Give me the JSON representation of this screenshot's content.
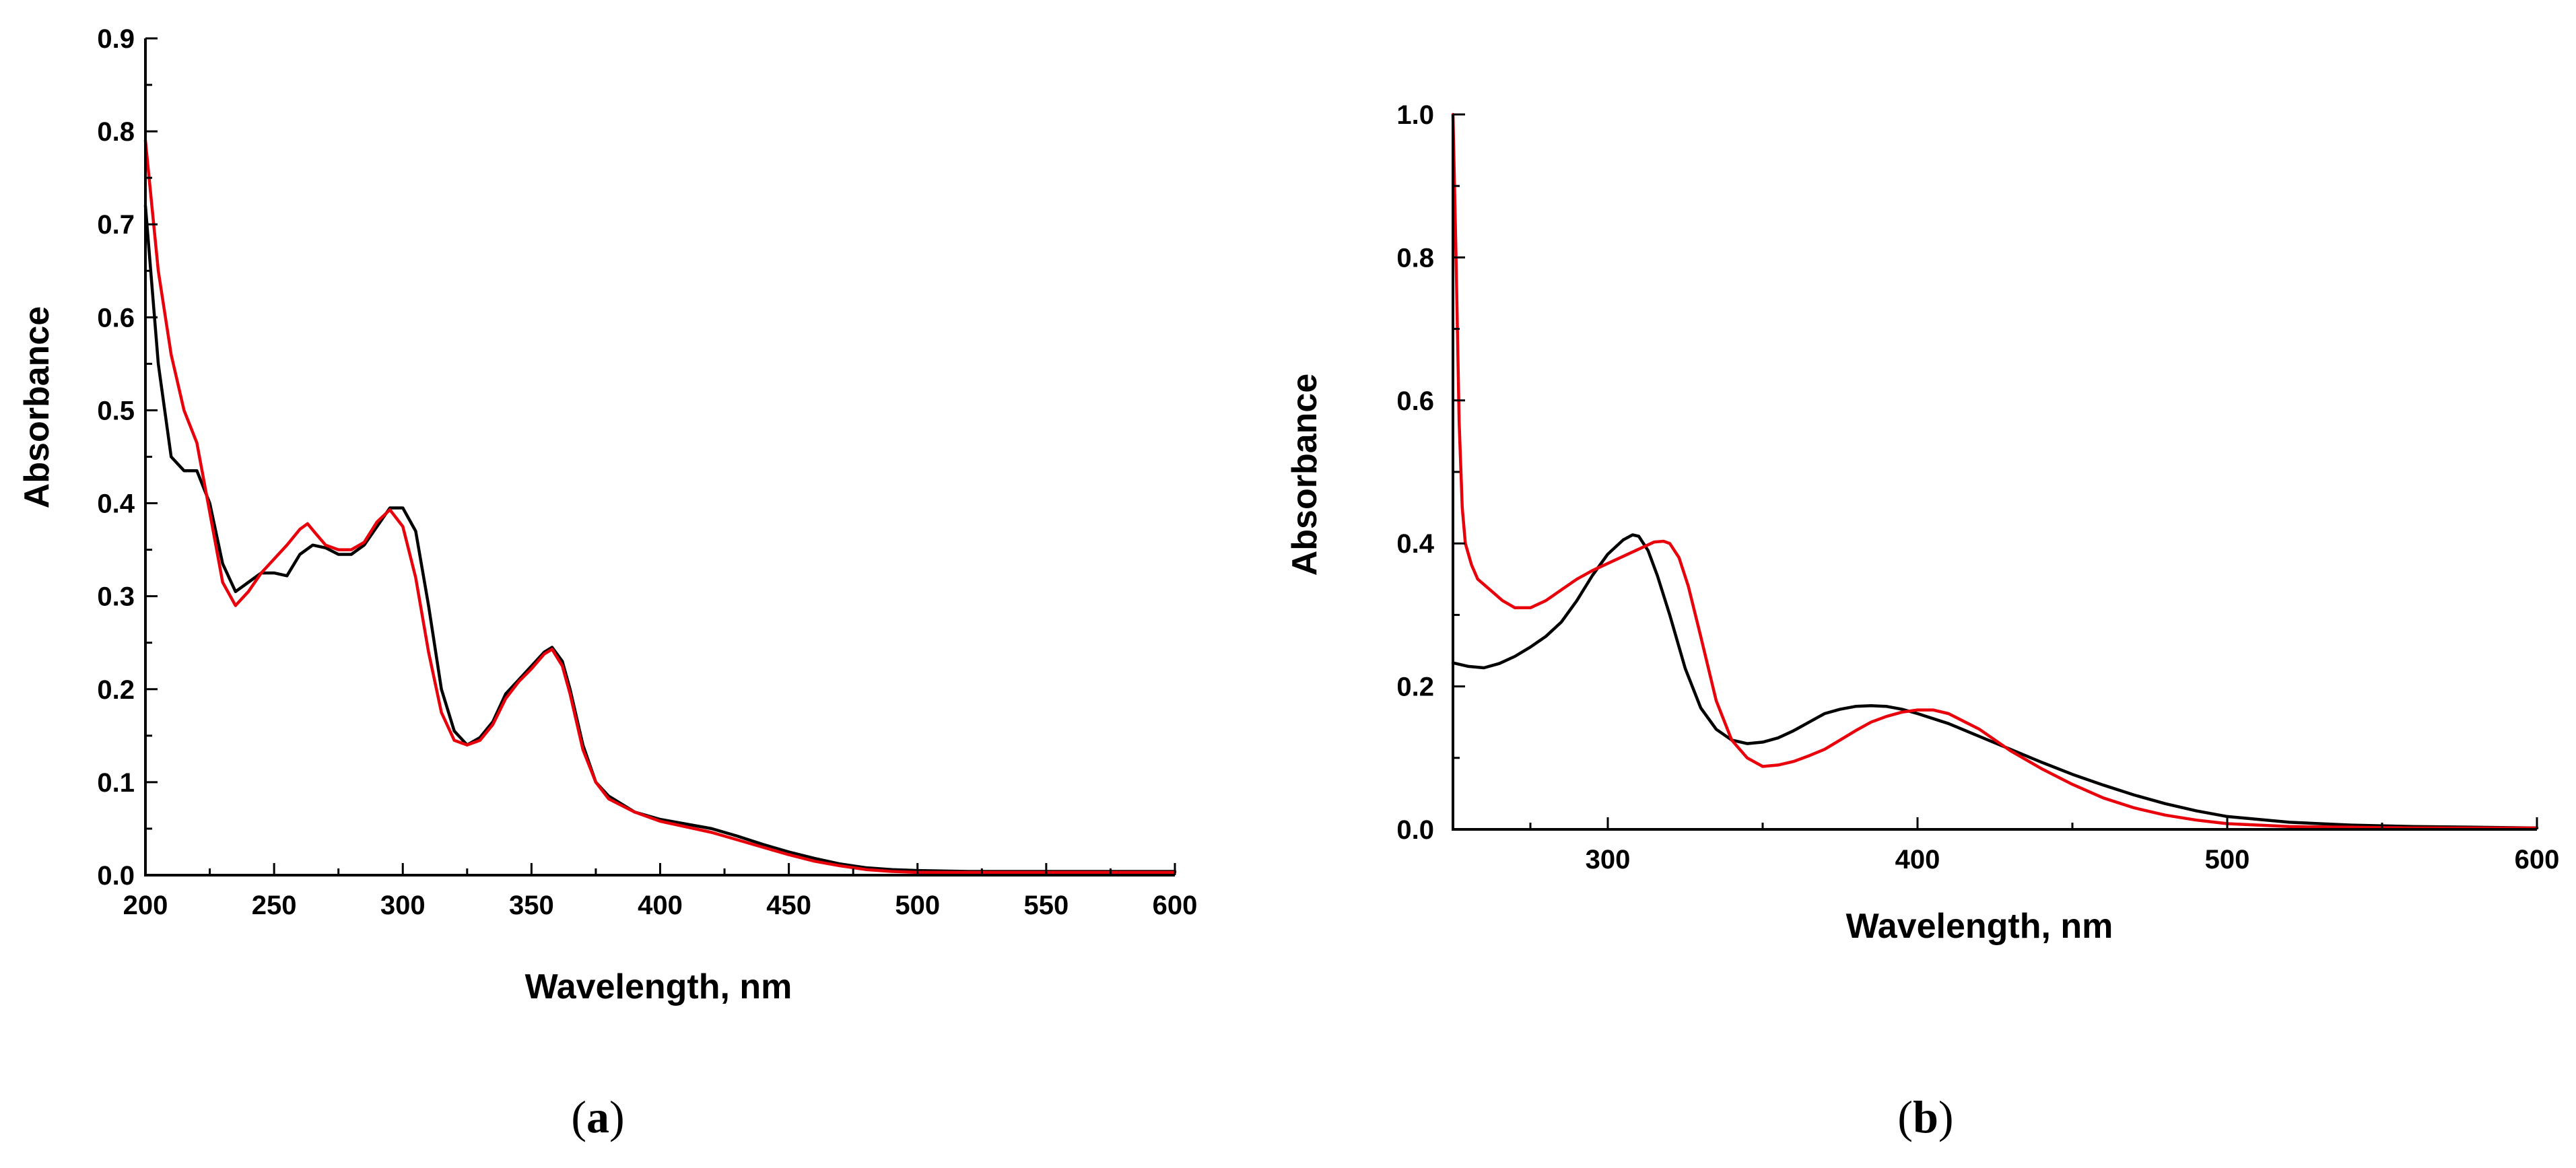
{
  "chart_data": [
    {
      "type": "line",
      "panel_label": "(a)",
      "panel_letter": "a",
      "title": "",
      "xlabel": "Wavelength, nm",
      "ylabel": "Absorbance",
      "xlim": [
        200,
        600
      ],
      "ylim": [
        0,
        0.9
      ],
      "xticks": [
        200,
        250,
        300,
        350,
        400,
        450,
        500,
        550,
        600
      ],
      "yticks": [
        0.0,
        0.1,
        0.2,
        0.3,
        0.4,
        0.5,
        0.6,
        0.7,
        0.8,
        0.9
      ],
      "xtick_labels": [
        "200",
        "250",
        "300",
        "350",
        "400",
        "450",
        "500",
        "550",
        "600"
      ],
      "ytick_labels": [
        "0.0",
        "0.1",
        "0.2",
        "0.3",
        "0.4",
        "0.5",
        "0.6",
        "0.7",
        "0.8",
        "0.9"
      ],
      "grid": false,
      "series": [
        {
          "name": "black",
          "color": "#000000",
          "x": [
            200,
            205,
            210,
            215,
            220,
            225,
            230,
            235,
            240,
            245,
            250,
            255,
            260,
            265,
            270,
            275,
            280,
            285,
            290,
            295,
            300,
            305,
            310,
            315,
            320,
            325,
            330,
            335,
            340,
            345,
            350,
            355,
            358,
            362,
            365,
            370,
            375,
            380,
            390,
            400,
            410,
            420,
            430,
            440,
            450,
            460,
            470,
            480,
            490,
            500,
            520,
            550,
            580,
            600
          ],
          "y": [
            0.72,
            0.55,
            0.45,
            0.435,
            0.435,
            0.4,
            0.335,
            0.305,
            0.315,
            0.325,
            0.325,
            0.322,
            0.345,
            0.355,
            0.352,
            0.345,
            0.345,
            0.355,
            0.375,
            0.395,
            0.395,
            0.37,
            0.29,
            0.2,
            0.155,
            0.14,
            0.148,
            0.165,
            0.195,
            0.21,
            0.225,
            0.24,
            0.245,
            0.23,
            0.2,
            0.14,
            0.1,
            0.085,
            0.068,
            0.06,
            0.055,
            0.05,
            0.042,
            0.033,
            0.025,
            0.018,
            0.012,
            0.008,
            0.006,
            0.005,
            0.004,
            0.004,
            0.004,
            0.004
          ]
        },
        {
          "name": "red",
          "color": "#e8000b",
          "x": [
            200,
            205,
            210,
            215,
            220,
            225,
            230,
            235,
            240,
            245,
            250,
            255,
            260,
            263,
            266,
            270,
            275,
            280,
            285,
            290,
            295,
            300,
            305,
            310,
            315,
            320,
            325,
            330,
            335,
            340,
            345,
            350,
            355,
            358,
            362,
            365,
            370,
            375,
            380,
            390,
            400,
            410,
            420,
            430,
            440,
            450,
            460,
            470,
            480,
            490,
            500,
            520,
            550,
            580,
            600
          ],
          "y": [
            0.79,
            0.65,
            0.56,
            0.5,
            0.465,
            0.39,
            0.315,
            0.29,
            0.305,
            0.325,
            0.34,
            0.355,
            0.372,
            0.378,
            0.368,
            0.355,
            0.35,
            0.35,
            0.358,
            0.38,
            0.393,
            0.375,
            0.32,
            0.24,
            0.175,
            0.145,
            0.14,
            0.145,
            0.162,
            0.19,
            0.208,
            0.222,
            0.238,
            0.243,
            0.225,
            0.195,
            0.135,
            0.1,
            0.082,
            0.068,
            0.058,
            0.052,
            0.046,
            0.038,
            0.03,
            0.022,
            0.015,
            0.01,
            0.006,
            0.004,
            0.003,
            0.003,
            0.003,
            0.003,
            0.003
          ]
        }
      ]
    },
    {
      "type": "line",
      "panel_label": "(b)",
      "panel_letter": "b",
      "title": "",
      "xlabel": "Wavelength, nm",
      "ylabel": "Absorbance",
      "xlim": [
        250,
        600
      ],
      "ylim": [
        0,
        1.0
      ],
      "xticks": [
        300,
        400,
        500,
        600
      ],
      "yticks": [
        0.0,
        0.2,
        0.4,
        0.6,
        0.8,
        1.0
      ],
      "xtick_labels": [
        "300",
        "400",
        "500",
        "600"
      ],
      "ytick_labels": [
        "0.0",
        "0.2",
        "0.4",
        "0.6",
        "0.8",
        "1.0"
      ],
      "grid": false,
      "series": [
        {
          "name": "black",
          "color": "#000000",
          "x": [
            250,
            255,
            260,
            265,
            270,
            275,
            280,
            285,
            290,
            295,
            300,
            305,
            308,
            310,
            313,
            316,
            320,
            325,
            330,
            335,
            340,
            345,
            350,
            355,
            360,
            365,
            370,
            375,
            380,
            385,
            390,
            395,
            400,
            410,
            420,
            430,
            440,
            450,
            460,
            470,
            480,
            490,
            500,
            520,
            540,
            560,
            580,
            600
          ],
          "y": [
            0.233,
            0.228,
            0.226,
            0.232,
            0.242,
            0.255,
            0.27,
            0.29,
            0.32,
            0.355,
            0.385,
            0.405,
            0.412,
            0.41,
            0.39,
            0.355,
            0.3,
            0.225,
            0.17,
            0.14,
            0.125,
            0.12,
            0.122,
            0.128,
            0.138,
            0.15,
            0.162,
            0.168,
            0.172,
            0.173,
            0.172,
            0.168,
            0.162,
            0.148,
            0.13,
            0.112,
            0.094,
            0.077,
            0.062,
            0.048,
            0.036,
            0.026,
            0.018,
            0.01,
            0.006,
            0.004,
            0.003,
            0.002
          ]
        },
        {
          "name": "red",
          "color": "#e8000b",
          "x": [
            250,
            251,
            252,
            253,
            254,
            256,
            258,
            262,
            266,
            270,
            275,
            280,
            285,
            290,
            295,
            300,
            305,
            310,
            315,
            318,
            320,
            323,
            326,
            330,
            335,
            340,
            345,
            350,
            355,
            360,
            365,
            370,
            375,
            380,
            385,
            390,
            395,
            400,
            405,
            410,
            420,
            430,
            440,
            450,
            460,
            470,
            480,
            490,
            500,
            520,
            540,
            560,
            580,
            600
          ],
          "y": [
            1.0,
            0.8,
            0.57,
            0.45,
            0.4,
            0.37,
            0.35,
            0.335,
            0.32,
            0.31,
            0.31,
            0.32,
            0.335,
            0.35,
            0.362,
            0.372,
            0.382,
            0.392,
            0.402,
            0.403,
            0.4,
            0.38,
            0.34,
            0.27,
            0.18,
            0.125,
            0.1,
            0.088,
            0.09,
            0.095,
            0.103,
            0.112,
            0.125,
            0.138,
            0.15,
            0.158,
            0.164,
            0.167,
            0.167,
            0.162,
            0.14,
            0.11,
            0.085,
            0.063,
            0.044,
            0.03,
            0.02,
            0.013,
            0.008,
            0.004,
            0.003,
            0.002,
            0.002,
            0.002
          ]
        }
      ]
    }
  ]
}
